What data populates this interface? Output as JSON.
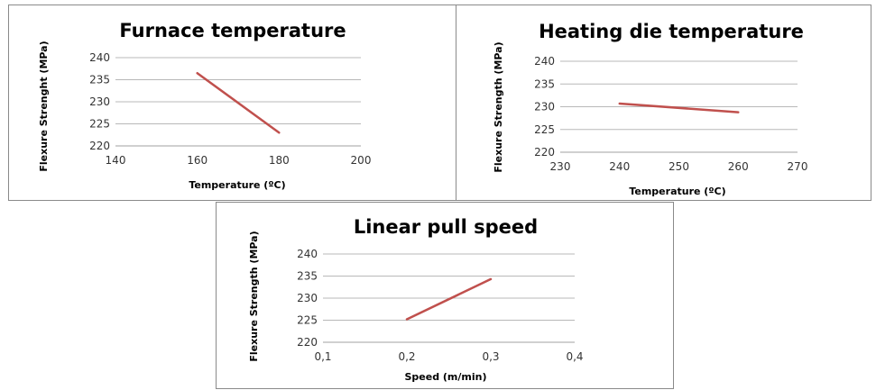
{
  "chart_data": [
    {
      "type": "line",
      "title": "Furnace temperature",
      "xlabel": "Temperature (ºC)",
      "ylabel": "Flexure Strenght (MPa)",
      "xlim": [
        140,
        200
      ],
      "ylim": [
        220,
        240
      ],
      "xticks": [
        "140",
        "160",
        "180",
        "200"
      ],
      "yticks": [
        "220",
        "225",
        "230",
        "235",
        "240"
      ],
      "grid": "horizontal",
      "series": [
        {
          "x": [
            160,
            180
          ],
          "y": [
            236.5,
            223
          ]
        }
      ],
      "color": "#c0504d"
    },
    {
      "type": "line",
      "title": "Heating die temperature",
      "xlabel": "Temperature (ºC)",
      "ylabel": "Flexure Strength (MPa)",
      "xlim": [
        230,
        270
      ],
      "ylim": [
        220,
        240
      ],
      "xticks": [
        "230",
        "240",
        "250",
        "260",
        "270"
      ],
      "yticks": [
        "220",
        "225",
        "230",
        "235",
        "240"
      ],
      "grid": "horizontal",
      "series": [
        {
          "x": [
            240,
            260
          ],
          "y": [
            230.7,
            228.8
          ]
        }
      ],
      "color": "#c0504d"
    },
    {
      "type": "line",
      "title": "Linear pull speed",
      "xlabel": "Speed (m/min)",
      "ylabel": "Flexure Strength (MPa)",
      "xlim": [
        0.1,
        0.4
      ],
      "ylim": [
        220,
        240
      ],
      "xticks": [
        "0,1",
        "0,2",
        "0,3",
        "0,4"
      ],
      "yticks": [
        "220",
        "225",
        "230",
        "235",
        "240"
      ],
      "grid": "horizontal",
      "series": [
        {
          "x": [
            0.2,
            0.3
          ],
          "y": [
            225.2,
            234.3
          ]
        }
      ],
      "color": "#c0504d"
    }
  ]
}
